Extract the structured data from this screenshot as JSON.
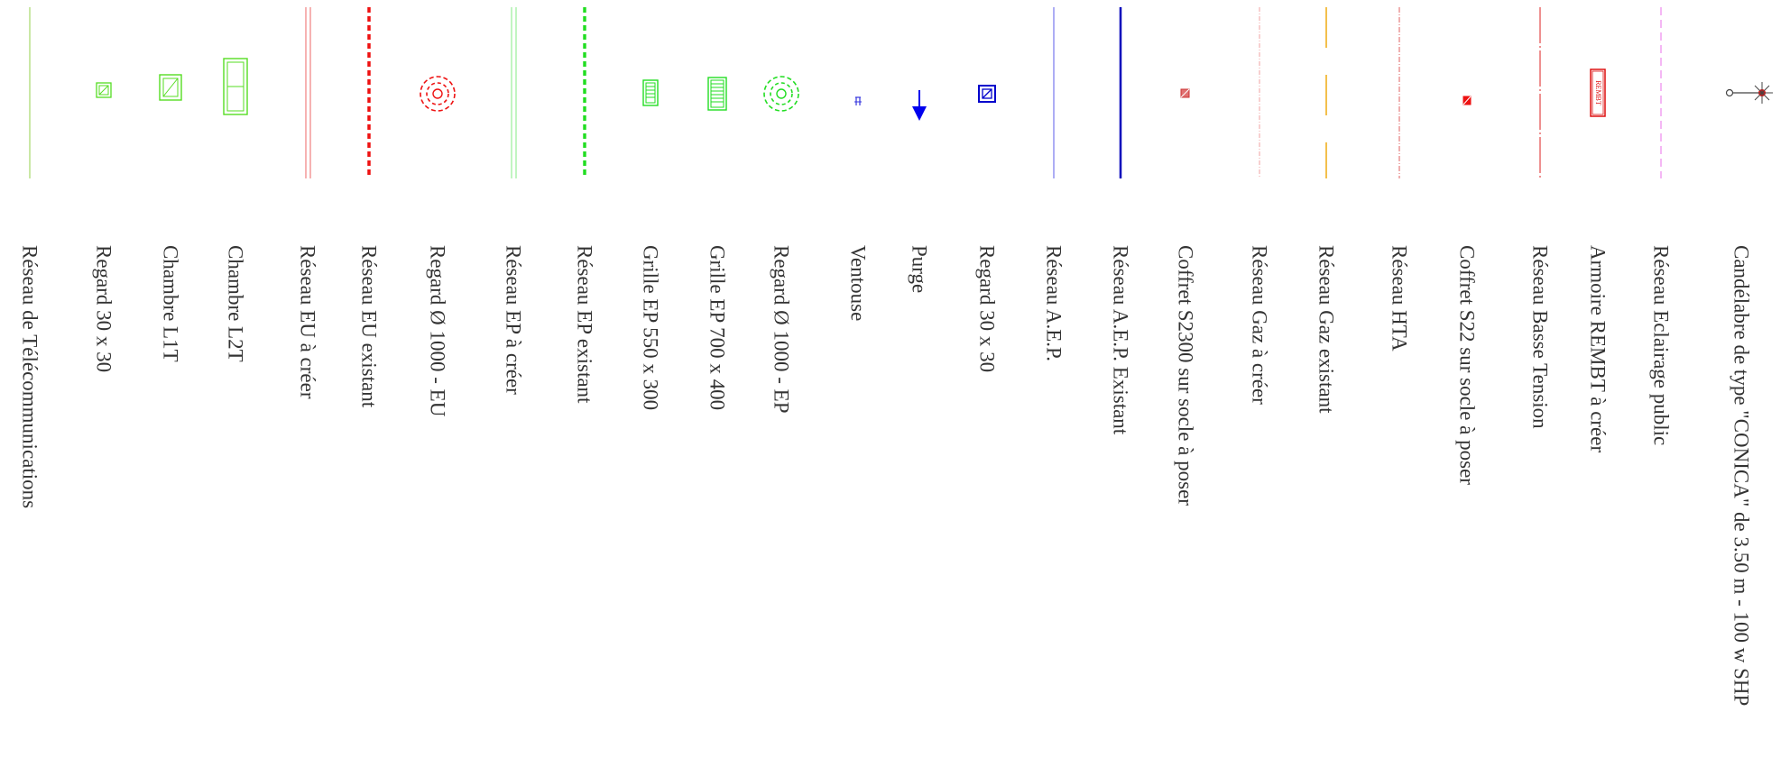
{
  "legend": {
    "items": [
      {
        "label": "Réseau de Télécommunications",
        "symbol": "line-telecom-icon"
      },
      {
        "label": "Regard 30 x 30",
        "symbol": "manhole-small-green-icon"
      },
      {
        "label": "Chambre L1T",
        "symbol": "chamber-l1t-icon"
      },
      {
        "label": "Chambre L2T",
        "symbol": "chamber-l2t-icon"
      },
      {
        "label": "Réseau EU à créer",
        "symbol": "line-eu-new-icon"
      },
      {
        "label": "Réseau EU existant",
        "symbol": "line-eu-existing-icon"
      },
      {
        "label": "Regard  Ø 1000 - EU",
        "symbol": "manhole-eu-icon"
      },
      {
        "label": "Réseau EP à créer",
        "symbol": "line-ep-new-icon"
      },
      {
        "label": "Réseau EP existant",
        "symbol": "line-ep-existing-icon"
      },
      {
        "label": "Grille EP 550 x 300",
        "symbol": "grate-550-icon"
      },
      {
        "label": "Grille EP 700 x 400",
        "symbol": "grate-700-icon"
      },
      {
        "label": "Regard  Ø 1000 - EP",
        "symbol": "manhole-ep-icon"
      },
      {
        "label": "Ventouse",
        "symbol": "air-valve-icon"
      },
      {
        "label": "Purge",
        "symbol": "purge-arrow-icon"
      },
      {
        "label": "Regard 30 x 30",
        "symbol": "manhole-small-blue-icon"
      },
      {
        "label": "Réseau A.E.P.",
        "symbol": "line-aep-icon"
      },
      {
        "label": "Réseau A.E.P. Existant",
        "symbol": "line-aep-existing-icon"
      },
      {
        "label": "Coffret S2300 sur socle à poser",
        "symbol": "box-s2300-icon"
      },
      {
        "label": "Réseau Gaz à créer",
        "symbol": "line-gas-new-icon"
      },
      {
        "label": "Réseau Gaz existant",
        "symbol": "line-gas-existing-icon"
      },
      {
        "label": "Réseau HTA",
        "symbol": "line-hta-icon"
      },
      {
        "label": "Coffret S22 sur socle à poser",
        "symbol": "box-s22-icon"
      },
      {
        "label": "Réseau Basse Tension",
        "symbol": "line-low-voltage-icon"
      },
      {
        "label": "Armoire REMBT à créer",
        "symbol": "cabinet-rembt-icon",
        "symbol_text": "REMBT"
      },
      {
        "label": "Réseau Eclairage public",
        "symbol": "line-lighting-icon"
      },
      {
        "label": "Candélabre de type \"CONICA\" de 3.50 m - 100 w SHP",
        "symbol": "streetlight-icon"
      }
    ]
  },
  "colors": {
    "telecom": "#a6d96a",
    "green": "#55dd22",
    "eu_new": "#f08080",
    "eu_existing": "#ee1111",
    "ep_new": "#99ee99",
    "ep_existing": "#22dd22",
    "aep": "#7777ee",
    "aep_existing": "#0000bb",
    "gas_new": "#f0a0a0",
    "gas_existing": "#f0b020",
    "hta": "#e06060",
    "low_voltage": "#dd2222",
    "lighting": "#ee88ee",
    "text": "#333333"
  }
}
